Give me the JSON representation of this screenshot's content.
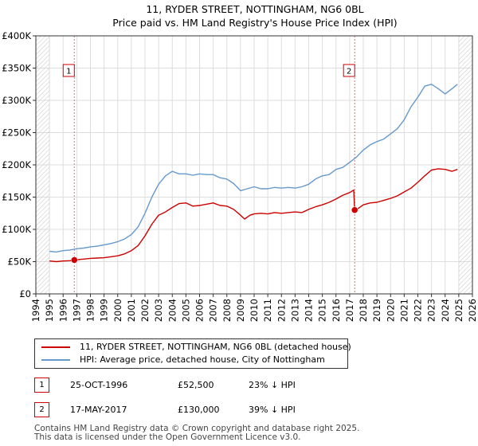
{
  "title": "11, RYDER STREET, NOTTINGHAM, NG6 0BL",
  "subtitle": "Price paid vs. HM Land Registry's House Price Index (HPI)",
  "colors": {
    "property": "#cc0000",
    "hpi": "#6699cc",
    "hatch": "#cccccc",
    "marker_line": "#ff6666",
    "grid": "#dddddd"
  },
  "chart_data": {
    "type": "line",
    "xlim": [
      1994,
      2026
    ],
    "ylim": [
      0,
      400000
    ],
    "y_ticks": [
      0,
      50000,
      100000,
      150000,
      200000,
      250000,
      300000,
      350000,
      400000
    ],
    "y_tick_labels": [
      "£0",
      "£50K",
      "£100K",
      "£150K",
      "£200K",
      "£250K",
      "£300K",
      "£350K",
      "£400K"
    ],
    "x_ticks": [
      1994,
      1995,
      1996,
      1997,
      1998,
      1999,
      2000,
      2001,
      2002,
      2003,
      2004,
      2005,
      2006,
      2007,
      2008,
      2009,
      2010,
      2011,
      2012,
      2013,
      2014,
      2015,
      2016,
      2017,
      2018,
      2019,
      2020,
      2021,
      2022,
      2023,
      2024,
      2025,
      2026
    ],
    "x_tick_labels": [
      "1994",
      "1995",
      "1996",
      "1997",
      "1998",
      "1999",
      "2000",
      "2001",
      "2002",
      "2003",
      "2004",
      "2005",
      "2006",
      "2007",
      "2008",
      "2009",
      "2010",
      "2011",
      "2012",
      "2013",
      "2014",
      "2015",
      "2016",
      "2017",
      "2018",
      "2019",
      "2020",
      "2021",
      "2022",
      "2023",
      "2024",
      "2025",
      "2026"
    ],
    "hatch_regions": [
      [
        1994,
        1995.0
      ],
      [
        2025.0,
        2026
      ]
    ],
    "series": [
      {
        "name": "11, RYDER STREET, NOTTINGHAM, NG6 0BL (detached house)",
        "color": "#cc0000",
        "x": [
          1995.0,
          1995.5,
          1996.0,
          1996.5,
          1996.82,
          1997.5,
          1998.0,
          1998.5,
          1999.0,
          1999.5,
          2000.0,
          2000.5,
          2001.0,
          2001.5,
          2002.0,
          2002.5,
          2003.0,
          2003.5,
          2004.0,
          2004.5,
          2005.0,
          2005.5,
          2006.0,
          2006.5,
          2007.0,
          2007.5,
          2008.0,
          2008.5,
          2009.0,
          2009.3,
          2009.7,
          2010.0,
          2010.5,
          2011.0,
          2011.5,
          2012.0,
          2012.5,
          2013.0,
          2013.5,
          2014.0,
          2014.5,
          2015.0,
          2015.5,
          2016.0,
          2016.5,
          2017.0,
          2017.3,
          2017.37,
          2017.6,
          2018.0,
          2018.5,
          2019.0,
          2019.5,
          2020.0,
          2020.5,
          2021.0,
          2021.5,
          2022.0,
          2022.5,
          2023.0,
          2023.5,
          2024.0,
          2024.5,
          2024.9
        ],
        "values": [
          51000,
          50000,
          51000,
          51500,
          52500,
          54000,
          55000,
          55500,
          56000,
          57500,
          59000,
          62000,
          67000,
          75000,
          90000,
          108000,
          122000,
          127000,
          134000,
          140000,
          141000,
          136000,
          137000,
          139000,
          141000,
          137000,
          136000,
          131000,
          122000,
          116000,
          122000,
          124000,
          125000,
          124000,
          126000,
          125000,
          126000,
          127000,
          126000,
          131000,
          135000,
          138000,
          142000,
          147000,
          153000,
          157000,
          161000,
          130000,
          132000,
          138000,
          141000,
          142000,
          145000,
          148000,
          152000,
          158000,
          164000,
          173000,
          183000,
          192000,
          194000,
          193000,
          190000,
          193000
        ]
      },
      {
        "name": "HPI: Average price, detached house, City of Nottingham",
        "color": "#6699cc",
        "x": [
          1995.0,
          1995.5,
          1996.0,
          1996.5,
          1997.0,
          1997.5,
          1998.0,
          1998.5,
          1999.0,
          1999.5,
          2000.0,
          2000.5,
          2001.0,
          2001.5,
          2002.0,
          2002.5,
          2003.0,
          2003.5,
          2004.0,
          2004.5,
          2005.0,
          2005.5,
          2006.0,
          2006.5,
          2007.0,
          2007.5,
          2008.0,
          2008.5,
          2009.0,
          2009.5,
          2010.0,
          2010.5,
          2011.0,
          2011.5,
          2012.0,
          2012.5,
          2013.0,
          2013.5,
          2014.0,
          2014.5,
          2015.0,
          2015.5,
          2016.0,
          2016.5,
          2017.0,
          2017.5,
          2018.0,
          2018.5,
          2019.0,
          2019.5,
          2020.0,
          2020.5,
          2021.0,
          2021.5,
          2022.0,
          2022.5,
          2023.0,
          2023.5,
          2024.0,
          2024.5,
          2024.9
        ],
        "values": [
          66000,
          65000,
          67000,
          68000,
          70000,
          71000,
          73000,
          74000,
          76000,
          78000,
          81000,
          85000,
          92000,
          104000,
          125000,
          150000,
          170000,
          183000,
          190000,
          186000,
          186000,
          184000,
          186000,
          185000,
          185000,
          180000,
          178000,
          171000,
          160000,
          163000,
          166000,
          163000,
          163000,
          165000,
          164000,
          165000,
          164000,
          166000,
          170000,
          178000,
          183000,
          185000,
          193000,
          196000,
          204000,
          212000,
          223000,
          231000,
          236000,
          240000,
          248000,
          256000,
          270000,
          290000,
          305000,
          322000,
          325000,
          318000,
          310000,
          318000,
          325000
        ]
      }
    ],
    "sales": [
      {
        "label": "1",
        "year": 1996.82,
        "price": 52500
      },
      {
        "label": "2",
        "year": 2017.37,
        "price": 130000
      }
    ]
  },
  "legend": {
    "property_label": "11, RYDER STREET, NOTTINGHAM, NG6 0BL (detached house)",
    "hpi_label": "HPI: Average price, detached house, City of Nottingham"
  },
  "transactions": [
    {
      "num": "1",
      "date": "25-OCT-1996",
      "price": "£52,500",
      "hpi": "23% ↓ HPI"
    },
    {
      "num": "2",
      "date": "17-MAY-2017",
      "price": "£130,000",
      "hpi": "39% ↓ HPI"
    }
  ],
  "footer": {
    "line1": "Contains HM Land Registry data © Crown copyright and database right 2025.",
    "line2": "This data is licensed under the Open Government Licence v3.0."
  }
}
